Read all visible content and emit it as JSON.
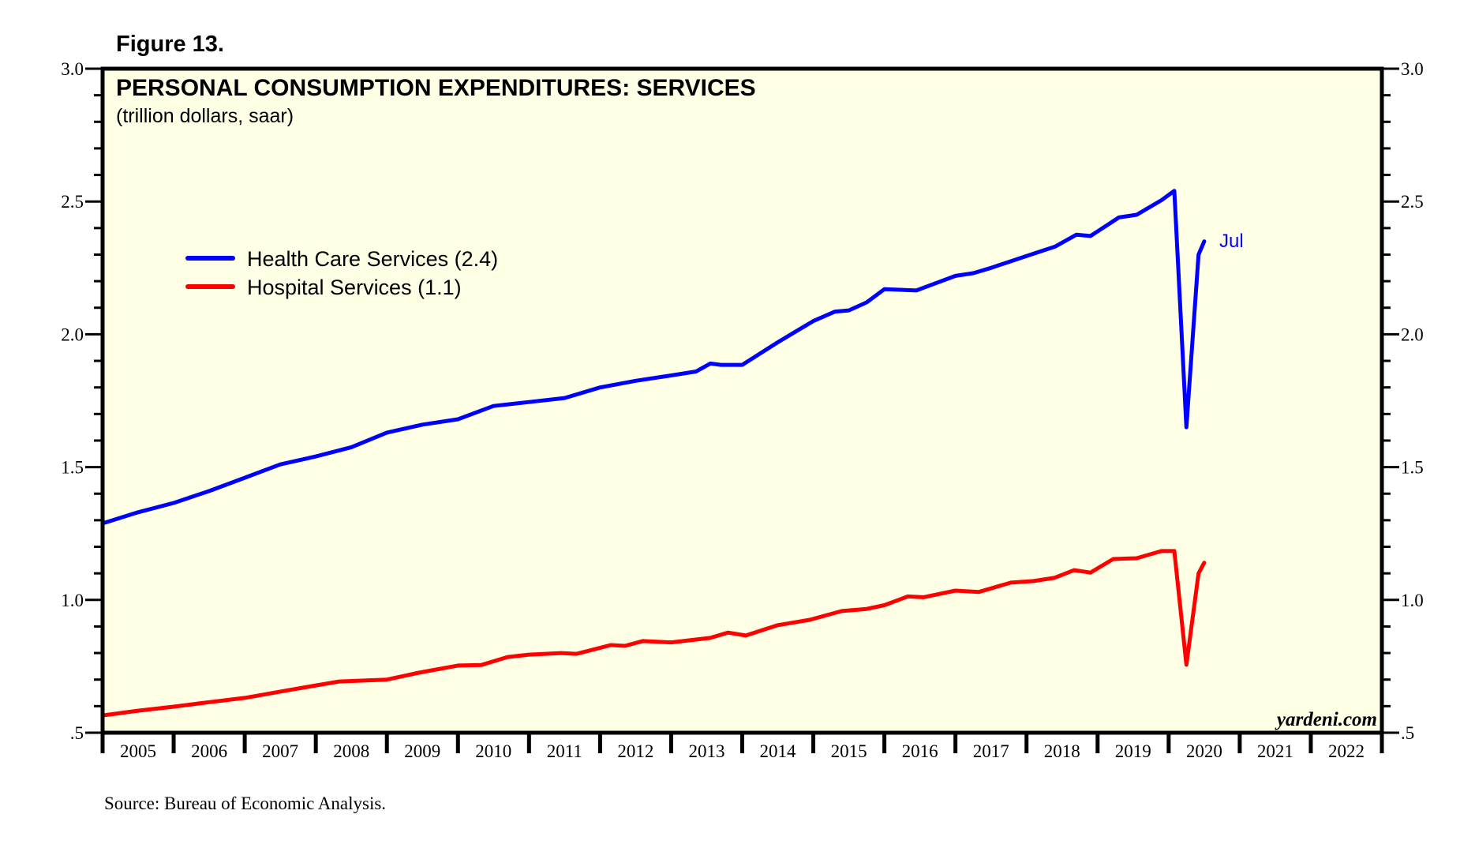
{
  "figure_label": "Figure 13.",
  "source": "Source: Bureau of Economic Analysis.",
  "watermark": "yardeni.com",
  "colors": {
    "plot_background": "#ffffe6",
    "frame": "#000000",
    "health_care": "#0000ff",
    "hospital": "#ff0000"
  },
  "chart_data": {
    "type": "line",
    "title": "PERSONAL CONSUMPTION EXPENDITURES: SERVICES",
    "subtitle": "(trillion dollars, saar)",
    "xlabel": "",
    "ylabel": "",
    "xlim": [
      2005,
      2023
    ],
    "ylim": [
      0.5,
      3.0
    ],
    "y_ticks": [
      0.5,
      1.0,
      1.5,
      2.0,
      2.5,
      3.0
    ],
    "y_tick_labels": [
      ".5",
      "1.0",
      "1.5",
      "2.0",
      "2.5",
      "3.0"
    ],
    "y_minor_step": 0.1,
    "x_tick_labels": [
      "2005",
      "2006",
      "2007",
      "2008",
      "2009",
      "2010",
      "2011",
      "2012",
      "2013",
      "2014",
      "2015",
      "2016",
      "2017",
      "2018",
      "2019",
      "2020",
      "2021",
      "2022"
    ],
    "grid": false,
    "legend_position": "upper-left",
    "end_annotation": {
      "text": "Jul",
      "series": "Health Care Services"
    },
    "series": [
      {
        "name": "Health Care Services",
        "legend_label": "Health Care Services (2.4)",
        "color": "#0000ff",
        "x": [
          2005.0,
          2005.5,
          2006.0,
          2006.5,
          2007.0,
          2007.5,
          2008.0,
          2008.5,
          2009.0,
          2009.5,
          2010.0,
          2010.5,
          2011.0,
          2011.5,
          2012.0,
          2012.5,
          2013.0,
          2013.35,
          2013.55,
          2013.7,
          2014.0,
          2014.5,
          2015.0,
          2015.3,
          2015.5,
          2015.75,
          2016.0,
          2016.45,
          2016.6,
          2017.0,
          2017.25,
          2017.5,
          2018.0,
          2018.4,
          2018.7,
          2018.9,
          2019.3,
          2019.55,
          2019.9,
          2020.08,
          2020.25,
          2020.42,
          2020.5
        ],
        "values": [
          1.288,
          1.33,
          1.365,
          1.41,
          1.46,
          1.51,
          1.54,
          1.575,
          1.63,
          1.66,
          1.68,
          1.73,
          1.745,
          1.76,
          1.8,
          1.825,
          1.845,
          1.86,
          1.89,
          1.885,
          1.885,
          1.97,
          2.05,
          2.085,
          2.09,
          2.12,
          2.17,
          2.165,
          2.18,
          2.22,
          2.23,
          2.25,
          2.295,
          2.33,
          2.375,
          2.37,
          2.44,
          2.45,
          2.505,
          2.54,
          1.65,
          2.3,
          2.35
        ]
      },
      {
        "name": "Hospital Services",
        "legend_label": "Hospital Services (1.1)",
        "color": "#ff0000",
        "x": [
          2005.0,
          2005.5,
          2006.0,
          2006.5,
          2007.0,
          2007.5,
          2008.0,
          2008.33,
          2009.0,
          2009.45,
          2010.0,
          2010.33,
          2010.7,
          2011.0,
          2011.45,
          2011.67,
          2012.15,
          2012.35,
          2012.6,
          2013.0,
          2013.55,
          2013.8,
          2014.05,
          2014.5,
          2014.95,
          2015.4,
          2015.75,
          2016.0,
          2016.33,
          2016.55,
          2017.0,
          2017.33,
          2017.78,
          2018.1,
          2018.39,
          2018.67,
          2018.9,
          2019.22,
          2019.55,
          2019.9,
          2020.08,
          2020.25,
          2020.42,
          2020.5
        ],
        "values": [
          0.565,
          0.583,
          0.598,
          0.615,
          0.631,
          0.655,
          0.678,
          0.693,
          0.7,
          0.726,
          0.753,
          0.755,
          0.785,
          0.794,
          0.8,
          0.797,
          0.83,
          0.827,
          0.845,
          0.84,
          0.857,
          0.877,
          0.866,
          0.905,
          0.925,
          0.958,
          0.966,
          0.98,
          1.013,
          1.01,
          1.035,
          1.03,
          1.065,
          1.071,
          1.083,
          1.112,
          1.103,
          1.154,
          1.157,
          1.184,
          1.184,
          0.756,
          1.1,
          1.14
        ]
      }
    ]
  }
}
